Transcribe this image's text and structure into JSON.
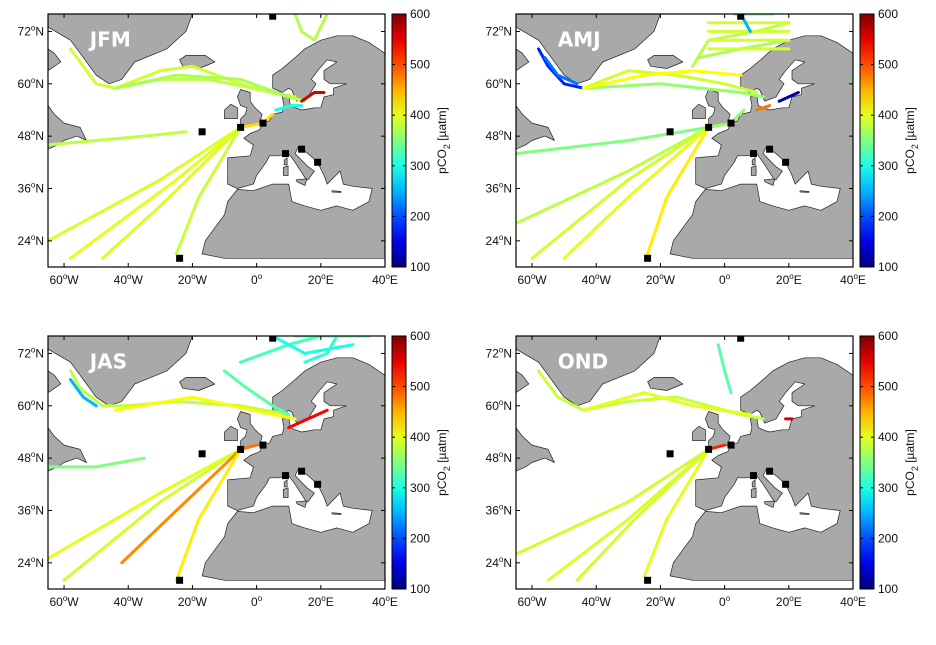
{
  "colors": {
    "land": "#a9a9a9",
    "ocean": "#ffffff",
    "frame": "#000000",
    "season_label": "#ffffff",
    "station": "#000000"
  },
  "colorbar": {
    "ticks": [
      "600",
      "500",
      "400",
      "300",
      "200",
      "100"
    ],
    "label_main": "pCO",
    "label_sub": "2",
    "label_unit": " [µatm]",
    "range": [
      100,
      600
    ],
    "colormap": "jet"
  },
  "axes": {
    "lon_ticks": [
      {
        "deg": "60",
        "sup": "o",
        "dir": "W",
        "value": -60
      },
      {
        "deg": "40",
        "sup": "o",
        "dir": "W",
        "value": -40
      },
      {
        "deg": "20",
        "sup": "o",
        "dir": "W",
        "value": -20
      },
      {
        "deg": "0",
        "sup": "o",
        "dir": "",
        "value": 0
      },
      {
        "deg": "20",
        "sup": "o",
        "dir": "E",
        "value": 20
      },
      {
        "deg": "40",
        "sup": "o",
        "dir": "E",
        "value": 40
      }
    ],
    "lat_ticks": [
      {
        "deg": "72",
        "sup": "o",
        "dir": "N",
        "value": 72
      },
      {
        "deg": "60",
        "sup": "o",
        "dir": "N",
        "value": 60
      },
      {
        "deg": "48",
        "sup": "o",
        "dir": "N",
        "value": 48
      },
      {
        "deg": "36",
        "sup": "o",
        "dir": "N",
        "value": 36
      },
      {
        "deg": "24",
        "sup": "o",
        "dir": "N",
        "value": 24
      }
    ],
    "lon_range": [
      -65,
      40
    ],
    "lat_range": [
      18,
      76
    ]
  },
  "stations": [
    {
      "lon": 5,
      "lat": 75.5
    },
    {
      "lon": -17,
      "lat": 49
    },
    {
      "lon": -5,
      "lat": 50
    },
    {
      "lon": 2,
      "lat": 51
    },
    {
      "lon": 9,
      "lat": 44
    },
    {
      "lon": 14,
      "lat": 45
    },
    {
      "lon": 19,
      "lat": 42
    },
    {
      "lon": -24,
      "lat": 20
    }
  ],
  "panels": [
    {
      "season": "JFM",
      "tracks": [
        {
          "v": 390,
          "pts": [
            [
              -58,
              68
            ],
            [
              -50,
              60
            ],
            [
              -44,
              59
            ],
            [
              -30,
              63
            ],
            [
              -20,
              64
            ],
            [
              -5,
              60
            ],
            [
              5,
              58
            ],
            [
              15,
              56
            ]
          ]
        },
        {
          "v": 380,
          "pts": [
            [
              -44,
              59
            ],
            [
              -30,
              61
            ],
            [
              -15,
              61
            ],
            [
              5,
              58
            ],
            [
              12,
              57
            ]
          ]
        },
        {
          "v": 370,
          "pts": [
            [
              -44,
              59
            ],
            [
              -25,
              62
            ],
            [
              -5,
              61
            ],
            [
              10,
              57
            ]
          ]
        },
        {
          "v": 395,
          "pts": [
            [
              -5,
              50
            ],
            [
              -30,
              38
            ],
            [
              -65,
              24
            ]
          ]
        },
        {
          "v": 400,
          "pts": [
            [
              -5,
              50
            ],
            [
              -25,
              38
            ],
            [
              -58,
              20
            ]
          ]
        },
        {
          "v": 395,
          "pts": [
            [
              -5,
              50
            ],
            [
              -30,
              32
            ],
            [
              -48,
              20
            ]
          ]
        },
        {
          "v": 385,
          "pts": [
            [
              -5,
              50
            ],
            [
              -18,
              34
            ],
            [
              -25,
              21
            ]
          ]
        },
        {
          "v": 380,
          "pts": [
            [
              -65,
              46
            ],
            [
              -35,
              48
            ],
            [
              -22,
              49
            ]
          ]
        },
        {
          "v": 375,
          "pts": [
            [
              12,
              76
            ],
            [
              14,
              72
            ],
            [
              18,
              70
            ],
            [
              22,
              76
            ]
          ]
        },
        {
          "v": 300,
          "pts": [
            [
              6,
              54
            ],
            [
              11,
              55
            ],
            [
              14,
              55
            ]
          ]
        },
        {
          "v": 560,
          "pts": [
            [
              14,
              56
            ],
            [
              18,
              58
            ],
            [
              21,
              58
            ]
          ]
        },
        {
          "v": 430,
          "pts": [
            [
              -5,
              50
            ],
            [
              2,
              51
            ],
            [
              5,
              53
            ]
          ]
        }
      ]
    },
    {
      "season": "AMJ",
      "tracks": [
        {
          "v": 180,
          "pts": [
            [
              -58,
              68
            ],
            [
              -55,
              64
            ],
            [
              -50,
              60
            ],
            [
              -44,
              59
            ]
          ]
        },
        {
          "v": 220,
          "pts": [
            [
              -56,
              66
            ],
            [
              -52,
              62
            ],
            [
              -46,
              60
            ]
          ]
        },
        {
          "v": 390,
          "pts": [
            [
              -44,
              59
            ],
            [
              -30,
              63
            ],
            [
              -15,
              62
            ],
            [
              0,
              60
            ],
            [
              10,
              58
            ]
          ]
        },
        {
          "v": 360,
          "pts": [
            [
              -44,
              59
            ],
            [
              -20,
              60
            ],
            [
              5,
              58
            ],
            [
              12,
              57
            ]
          ]
        },
        {
          "v": 410,
          "pts": [
            [
              -44,
              59
            ],
            [
              -25,
              62
            ],
            [
              -10,
              63
            ],
            [
              5,
              62
            ]
          ]
        },
        {
          "v": 380,
          "pts": [
            [
              -10,
              64
            ],
            [
              -5,
              70
            ],
            [
              10,
              72
            ],
            [
              20,
              74
            ]
          ]
        },
        {
          "v": 370,
          "pts": [
            [
              -8,
              66
            ],
            [
              5,
              68
            ],
            [
              20,
              70
            ]
          ]
        },
        {
          "v": 390,
          "pts": [
            [
              -5,
              68
            ],
            [
              20,
              68
            ]
          ]
        },
        {
          "v": 390,
          "pts": [
            [
              -5,
              70
            ],
            [
              20,
              70
            ]
          ]
        },
        {
          "v": 390,
          "pts": [
            [
              -5,
              72
            ],
            [
              20,
              72
            ]
          ]
        },
        {
          "v": 390,
          "pts": [
            [
              -5,
              74
            ],
            [
              20,
              74
            ]
          ]
        },
        {
          "v": 340,
          "pts": [
            [
              3,
              76
            ],
            [
              15,
              76
            ]
          ]
        },
        {
          "v": 350,
          "pts": [
            [
              -5,
              50
            ],
            [
              -30,
              47
            ],
            [
              -65,
              44
            ]
          ]
        },
        {
          "v": 380,
          "pts": [
            [
              -5,
              50
            ],
            [
              -30,
              40
            ],
            [
              -65,
              28
            ]
          ]
        },
        {
          "v": 390,
          "pts": [
            [
              -5,
              50
            ],
            [
              -30,
              38
            ],
            [
              -60,
              20
            ]
          ]
        },
        {
          "v": 400,
          "pts": [
            [
              -5,
              50
            ],
            [
              -30,
              34
            ],
            [
              -50,
              20
            ]
          ]
        },
        {
          "v": 420,
          "pts": [
            [
              -5,
              50
            ],
            [
              -18,
              34
            ],
            [
              -24,
              21
            ]
          ]
        },
        {
          "v": 360,
          "pts": [
            [
              -5,
              50
            ],
            [
              2,
              51
            ],
            [
              6,
              54
            ]
          ]
        },
        {
          "v": 120,
          "pts": [
            [
              17,
              56
            ],
            [
              20,
              57
            ],
            [
              23,
              58
            ]
          ]
        },
        {
          "v": 480,
          "pts": [
            [
              10,
              54
            ],
            [
              14,
              55
            ]
          ]
        },
        {
          "v": 250,
          "pts": [
            [
              5,
              76
            ],
            [
              8,
              72
            ]
          ]
        }
      ]
    },
    {
      "season": "JAS",
      "tracks": [
        {
          "v": 380,
          "pts": [
            [
              -58,
              68
            ],
            [
              -55,
              64
            ],
            [
              -48,
              60
            ],
            [
              -40,
              60
            ],
            [
              -25,
              61
            ],
            [
              -5,
              60
            ],
            [
              10,
              58
            ]
          ]
        },
        {
          "v": 250,
          "pts": [
            [
              -58,
              66
            ],
            [
              -54,
              62
            ],
            [
              -50,
              60
            ]
          ]
        },
        {
          "v": 410,
          "pts": [
            [
              -44,
              59
            ],
            [
              -20,
              62
            ],
            [
              5,
              58
            ],
            [
              12,
              57
            ]
          ]
        },
        {
          "v": 330,
          "pts": [
            [
              -10,
              68
            ],
            [
              -3,
              64
            ],
            [
              5,
              60
            ],
            [
              10,
              58
            ]
          ]
        },
        {
          "v": 320,
          "pts": [
            [
              -5,
              70
            ],
            [
              10,
              74
            ],
            [
              20,
              76
            ],
            [
              30,
              76
            ]
          ]
        },
        {
          "v": 300,
          "pts": [
            [
              5,
              76
            ],
            [
              15,
              72
            ],
            [
              30,
              74
            ]
          ]
        },
        {
          "v": 330,
          "pts": [
            [
              12,
              76
            ],
            [
              25,
              76
            ],
            [
              35,
              76
            ]
          ]
        },
        {
          "v": 310,
          "pts": [
            [
              15,
              70
            ],
            [
              22,
              72
            ],
            [
              25,
              76
            ]
          ]
        },
        {
          "v": 400,
          "pts": [
            [
              -5,
              50
            ],
            [
              -30,
              40
            ],
            [
              -65,
              25
            ]
          ]
        },
        {
          "v": 390,
          "pts": [
            [
              -5,
              50
            ],
            [
              -30,
              38
            ],
            [
              -60,
              20
            ]
          ]
        },
        {
          "v": 470,
          "pts": [
            [
              -5,
              50
            ],
            [
              -25,
              36
            ],
            [
              -42,
              24
            ]
          ]
        },
        {
          "v": 420,
          "pts": [
            [
              -5,
              50
            ],
            [
              -18,
              34
            ],
            [
              -25,
              20
            ]
          ]
        },
        {
          "v": 350,
          "pts": [
            [
              -65,
              46
            ],
            [
              -50,
              46
            ],
            [
              -35,
              48
            ]
          ]
        },
        {
          "v": 540,
          "pts": [
            [
              10,
              55
            ],
            [
              16,
              57
            ],
            [
              22,
              59
            ]
          ]
        },
        {
          "v": 480,
          "pts": [
            [
              -5,
              50
            ],
            [
              0,
              51
            ]
          ]
        }
      ]
    },
    {
      "season": "OND",
      "tracks": [
        {
          "v": 385,
          "pts": [
            [
              -58,
              68
            ],
            [
              -52,
              62
            ],
            [
              -44,
              59
            ],
            [
              -30,
              61
            ],
            [
              -15,
              62
            ],
            [
              5,
              58
            ],
            [
              12,
              57
            ]
          ]
        },
        {
          "v": 400,
          "pts": [
            [
              -44,
              59
            ],
            [
              -25,
              63
            ],
            [
              -10,
              60
            ],
            [
              8,
              58
            ]
          ]
        },
        {
          "v": 390,
          "pts": [
            [
              -5,
              50
            ],
            [
              -30,
              38
            ],
            [
              -65,
              26
            ]
          ]
        },
        {
          "v": 395,
          "pts": [
            [
              -5,
              50
            ],
            [
              -30,
              34
            ],
            [
              -55,
              20
            ]
          ]
        },
        {
          "v": 390,
          "pts": [
            [
              -5,
              50
            ],
            [
              -28,
              34
            ],
            [
              -46,
              20
            ]
          ]
        },
        {
          "v": 400,
          "pts": [
            [
              -5,
              50
            ],
            [
              -18,
              34
            ],
            [
              -25,
              21
            ]
          ]
        },
        {
          "v": 330,
          "pts": [
            [
              -2,
              74
            ],
            [
              0,
              68
            ],
            [
              2,
              63
            ]
          ]
        },
        {
          "v": 520,
          "pts": [
            [
              -5,
              50
            ],
            [
              0,
              51
            ]
          ]
        },
        {
          "v": 560,
          "pts": [
            [
              19,
              57
            ],
            [
              21,
              57
            ]
          ]
        }
      ]
    }
  ]
}
